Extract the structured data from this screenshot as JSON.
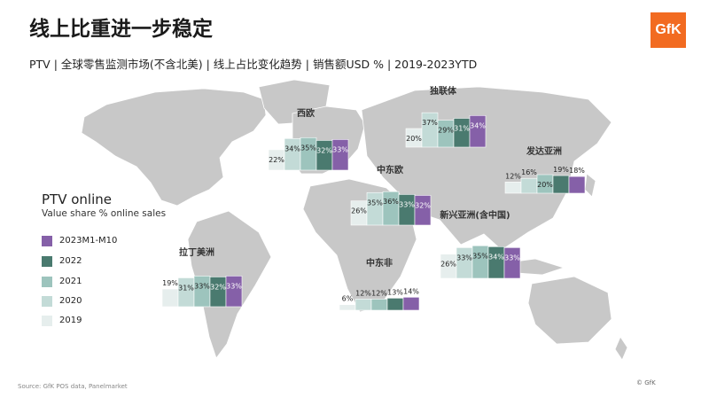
{
  "title": "线上比重进一步稳定",
  "subtitle": "PTV | 全球零售监测市场(不含北美) | 线上占比变化趋势 | 销售额USD % | 2019-2023YTD",
  "logo_text": "GfK",
  "legend": {
    "title": "PTV online",
    "subtitle": "Value share % online sales",
    "items": [
      {
        "label": "2023M1-M10",
        "color": "#8560a8"
      },
      {
        "label": "2022",
        "color": "#4a7a6f"
      },
      {
        "label": "2021",
        "color": "#9dc4bd"
      },
      {
        "label": "2020",
        "color": "#c3dbd7"
      },
      {
        "label": "2019",
        "color": "#e6eeed"
      }
    ]
  },
  "source": "Source: GfK POS data, Panelmarket",
  "copyright": "© GfK",
  "chart_data": {
    "type": "bar",
    "categories": [
      "2019",
      "2020",
      "2021",
      "2022",
      "2023M1-M10"
    ],
    "series": [
      {
        "name": "西欧",
        "values": [
          22,
          34,
          35,
          32,
          33
        ],
        "labels": [
          "22%",
          "34%",
          "35%",
          "32%",
          "33%"
        ]
      },
      {
        "name": "独联体",
        "values": [
          20,
          37,
          29,
          31,
          34
        ],
        "labels": [
          "20%",
          "37%",
          "29%",
          "31%",
          "34%"
        ]
      },
      {
        "name": "中东欧",
        "values": [
          26,
          35,
          36,
          33,
          32
        ],
        "labels": [
          "26%",
          "35%",
          "36%",
          "33%",
          "32%"
        ]
      },
      {
        "name": "发达亚洲",
        "values": [
          12,
          16,
          20,
          19,
          18
        ],
        "labels": [
          "12%",
          "16%",
          "20%",
          "19%",
          "18%"
        ]
      },
      {
        "name": "新兴亚洲(含中国)",
        "values": [
          26,
          33,
          35,
          34,
          33
        ],
        "labels": [
          "26%",
          "33%",
          "35%",
          "34%",
          "33%"
        ]
      },
      {
        "name": "拉丁美洲",
        "values": [
          19,
          31,
          33,
          32,
          33
        ],
        "labels": [
          "19%",
          "31%",
          "33%",
          "32%",
          "33%"
        ]
      },
      {
        "name": "中东非",
        "values": [
          6,
          12,
          12,
          13,
          14
        ],
        "labels": [
          "6%",
          "12%",
          "12%",
          "13%",
          "14%"
        ]
      }
    ]
  }
}
